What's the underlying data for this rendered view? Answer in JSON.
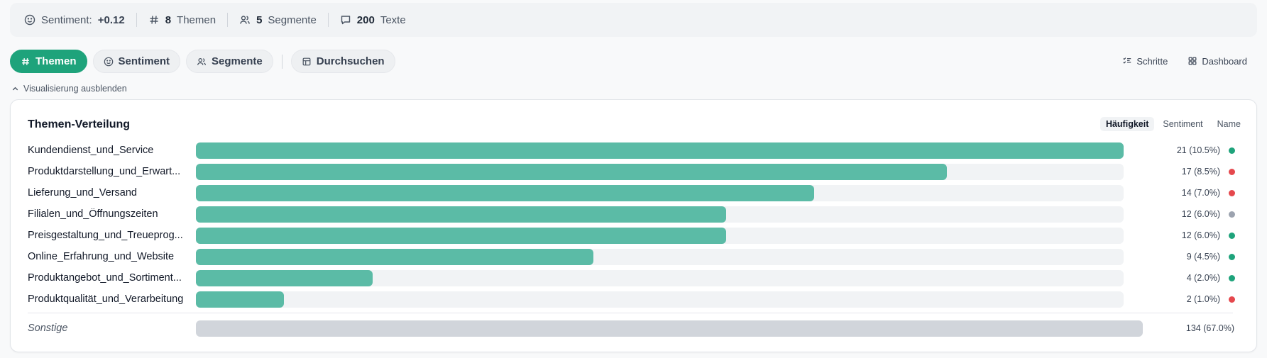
{
  "stats": {
    "sentiment_label": "Sentiment:",
    "sentiment_value": "+0.12",
    "themes_count": "8",
    "themes_label": "Themen",
    "segments_count": "5",
    "segments_label": "Segmente",
    "texts_count": "200",
    "texts_label": "Texte"
  },
  "tabs": [
    {
      "label": "Themen",
      "icon": "hash-icon",
      "active": true
    },
    {
      "label": "Sentiment",
      "icon": "smiley-icon",
      "active": false
    },
    {
      "label": "Segmente",
      "icon": "users-icon",
      "active": false
    },
    {
      "label": "Durchsuchen",
      "icon": "table-icon",
      "active": false
    }
  ],
  "actions": {
    "steps_label": "Schritte",
    "dashboard_label": "Dashboard"
  },
  "toggle_visualization_label": "Visualisierung ausblenden",
  "card": {
    "title": "Themen-Verteilung",
    "sort_options": [
      "Häufigkeit",
      "Sentiment",
      "Name"
    ],
    "sort_active": 0
  },
  "colors": {
    "accent": "#1ea37b",
    "bar": "#5bbba6",
    "positive": "#1ea37b",
    "negative": "#e5484d",
    "neutral": "#9ca3af",
    "other_bar": "#d1d5db"
  },
  "chart_data": {
    "type": "bar",
    "max_value": 21,
    "rows": [
      {
        "label": "Kundendienst_und_Service",
        "value": 21,
        "count_text": "21 (10.5%)",
        "sentiment": "positive"
      },
      {
        "label": "Produktdarstellung_und_Erwart...",
        "value": 17,
        "count_text": "17 (8.5%)",
        "sentiment": "negative"
      },
      {
        "label": "Lieferung_und_Versand",
        "value": 14,
        "count_text": "14 (7.0%)",
        "sentiment": "negative"
      },
      {
        "label": "Filialen_und_Öffnungszeiten",
        "value": 12,
        "count_text": "12 (6.0%)",
        "sentiment": "neutral"
      },
      {
        "label": "Preisgestaltung_und_Treueprog...",
        "value": 12,
        "count_text": "12 (6.0%)",
        "sentiment": "positive"
      },
      {
        "label": "Online_Erfahrung_und_Website",
        "value": 9,
        "count_text": "9 (4.5%)",
        "sentiment": "positive"
      },
      {
        "label": "Produktangebot_und_Sortiment...",
        "value": 4,
        "count_text": "4 (2.0%)",
        "sentiment": "positive"
      },
      {
        "label": "Produktqualität_und_Verarbeitung",
        "value": 2,
        "count_text": "2 (1.0%)",
        "sentiment": "negative"
      }
    ],
    "other": {
      "label": "Sonstige",
      "value": 134,
      "count_text": "134 (67.0%)"
    }
  }
}
